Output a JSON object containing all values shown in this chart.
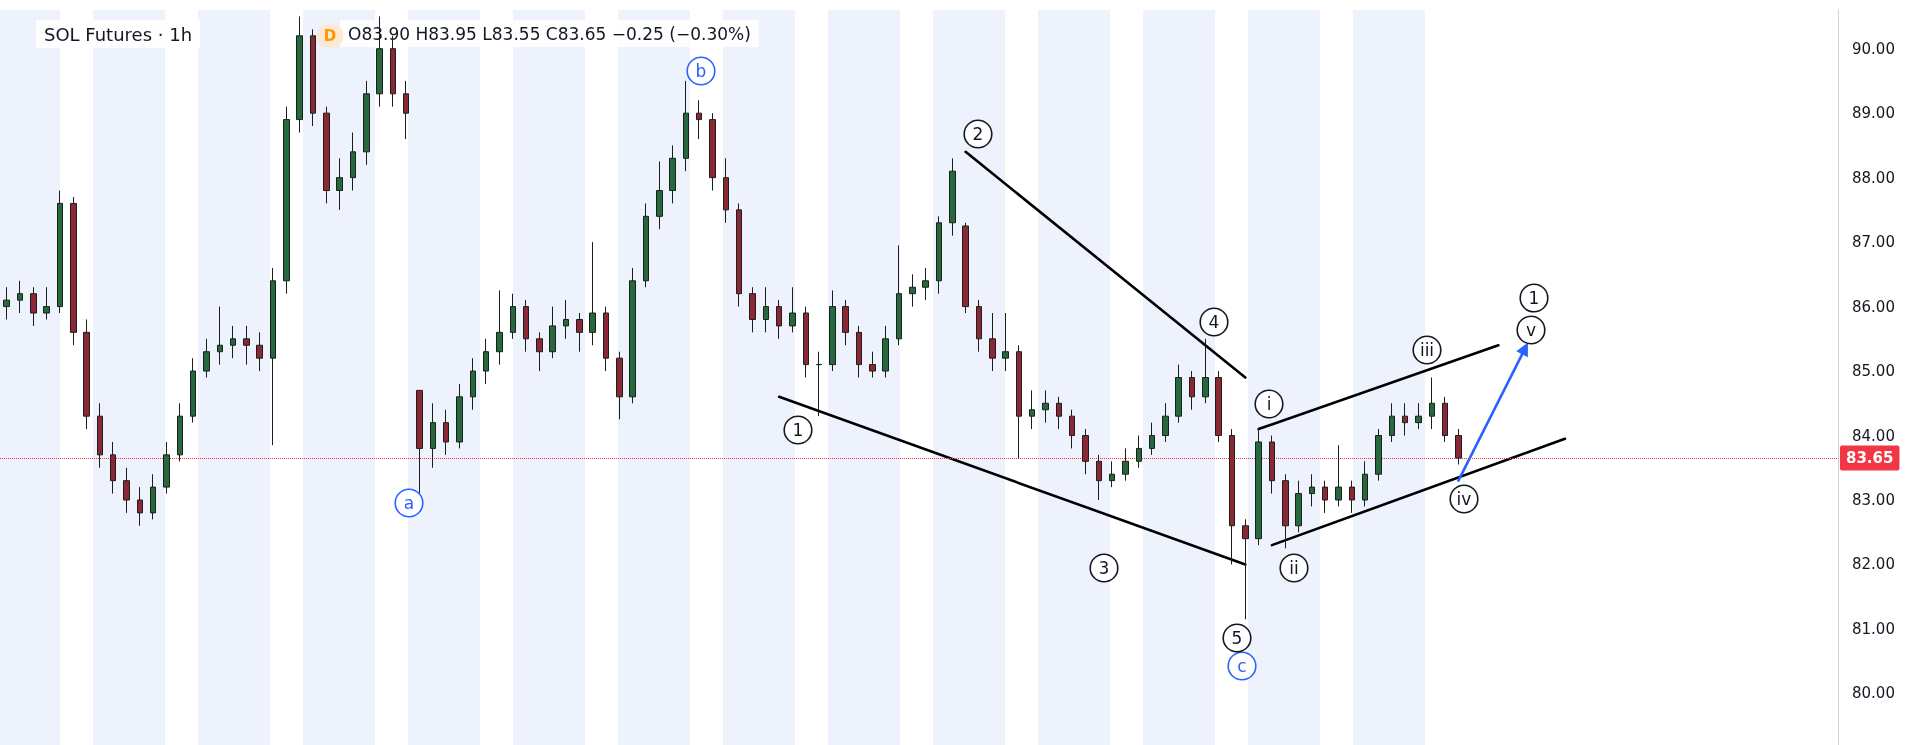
{
  "chart_data": {
    "type": "candlestick",
    "title": "SOL Futures · 1h",
    "subtitle": "O83.90 H83.95 L83.55 C83.65 −0.25 (−0.30%)",
    "annotations": [
      "D",
      "b",
      "a",
      "c",
      "1",
      "2",
      "3",
      "4",
      "5",
      "i",
      "ii",
      "iii",
      "iv",
      "v",
      "1"
    ],
    "categories": [
      null,
      null,
      null,
      null,
      null,
      null,
      null,
      null,
      null,
      null,
      null,
      null,
      null,
      null,
      null,
      null,
      null,
      null,
      null,
      null,
      null,
      null,
      null,
      null,
      null,
      null,
      null,
      null,
      null,
      null,
      null,
      null,
      null,
      null,
      null,
      null,
      null,
      null,
      null,
      null,
      null,
      null,
      null,
      null,
      null,
      null,
      null,
      null,
      null,
      null,
      null,
      null,
      null,
      null,
      null,
      null,
      null,
      null,
      null,
      null,
      null,
      null,
      null,
      null,
      null,
      null,
      null,
      null,
      null,
      null,
      null,
      null,
      null,
      null,
      null,
      null,
      null,
      null,
      null,
      null,
      null,
      null,
      null,
      null,
      null,
      null,
      null,
      null,
      null,
      null,
      null,
      null,
      null,
      null,
      null,
      null,
      null,
      null,
      null,
      null,
      null,
      null,
      null,
      null,
      null,
      null,
      null,
      null,
      null,
      null,
      null,
      null,
      null,
      null,
      null,
      null,
      null,
      null,
      null,
      null,
      null,
      null,
      null,
      null,
      null,
      null,
      null,
      null,
      null,
      null,
      null,
      null,
      null,
      null,
      null,
      null,
      null,
      null
    ],
    "ohlc": [
      [
        86.0,
        86.3,
        85.8,
        86.1
      ],
      [
        86.1,
        86.4,
        85.9,
        86.2
      ],
      [
        86.2,
        86.3,
        85.7,
        85.9
      ],
      [
        85.9,
        86.3,
        85.8,
        86.0
      ],
      [
        86.0,
        87.8,
        85.9,
        87.6
      ],
      [
        87.6,
        87.7,
        85.4,
        85.6
      ],
      [
        85.6,
        85.8,
        84.1,
        84.3
      ],
      [
        84.3,
        84.5,
        83.5,
        83.7
      ],
      [
        83.7,
        83.9,
        83.1,
        83.3
      ],
      [
        83.3,
        83.5,
        82.8,
        83.0
      ],
      [
        83.0,
        83.2,
        82.6,
        82.8
      ],
      [
        82.8,
        83.4,
        82.7,
        83.2
      ],
      [
        83.2,
        83.9,
        83.1,
        83.7
      ],
      [
        83.7,
        84.5,
        83.6,
        84.3
      ],
      [
        84.3,
        85.2,
        84.2,
        85.0
      ],
      [
        85.0,
        85.5,
        84.9,
        85.3
      ],
      [
        85.3,
        86.0,
        85.1,
        85.4
      ],
      [
        85.4,
        85.7,
        85.2,
        85.5
      ],
      [
        85.5,
        85.7,
        85.1,
        85.4
      ],
      [
        85.4,
        85.6,
        85.0,
        85.2
      ],
      [
        85.2,
        86.6,
        83.85,
        86.4
      ],
      [
        86.4,
        89.1,
        86.2,
        88.9
      ],
      [
        88.9,
        90.5,
        88.7,
        90.2
      ],
      [
        90.2,
        90.3,
        88.8,
        89.0
      ],
      [
        89.0,
        89.1,
        87.6,
        87.8
      ],
      [
        87.8,
        88.3,
        87.5,
        88.0
      ],
      [
        88.0,
        88.7,
        87.8,
        88.4
      ],
      [
        88.4,
        89.5,
        88.2,
        89.3
      ],
      [
        89.3,
        90.5,
        89.1,
        90.0
      ],
      [
        90.0,
        90.2,
        89.1,
        89.3
      ],
      [
        89.3,
        89.5,
        88.6,
        89.0
      ],
      [
        84.7,
        84.7,
        83.1,
        83.8
      ],
      [
        83.8,
        84.5,
        83.5,
        84.2
      ],
      [
        84.2,
        84.4,
        83.7,
        83.9
      ],
      [
        83.9,
        84.8,
        83.8,
        84.6
      ],
      [
        84.6,
        85.2,
        84.4,
        85.0
      ],
      [
        85.0,
        85.5,
        84.8,
        85.3
      ],
      [
        85.3,
        86.25,
        85.1,
        85.6
      ],
      [
        85.6,
        86.2,
        85.5,
        86.0
      ],
      [
        86.0,
        86.1,
        85.3,
        85.5
      ],
      [
        85.5,
        85.6,
        85.0,
        85.3
      ],
      [
        85.3,
        86.0,
        85.2,
        85.7
      ],
      [
        85.7,
        86.1,
        85.5,
        85.8
      ],
      [
        85.8,
        85.9,
        85.3,
        85.6
      ],
      [
        85.6,
        87.0,
        85.4,
        85.9
      ],
      [
        85.9,
        86.0,
        85.0,
        85.2
      ],
      [
        85.2,
        85.3,
        84.25,
        84.6
      ],
      [
        84.6,
        86.6,
        84.5,
        86.4
      ],
      [
        86.4,
        87.6,
        86.3,
        87.4
      ],
      [
        87.4,
        88.25,
        87.2,
        87.8
      ],
      [
        87.8,
        88.5,
        87.6,
        88.3
      ],
      [
        88.3,
        89.5,
        88.1,
        89.0
      ],
      [
        89.0,
        89.2,
        88.6,
        88.9
      ],
      [
        88.9,
        89.0,
        87.8,
        88.0
      ],
      [
        88.0,
        88.3,
        87.3,
        87.5
      ],
      [
        87.5,
        87.6,
        86.0,
        86.2
      ],
      [
        86.2,
        86.3,
        85.6,
        85.8
      ],
      [
        85.8,
        86.3,
        85.6,
        86.0
      ],
      [
        86.0,
        86.1,
        85.5,
        85.7
      ],
      [
        85.7,
        86.3,
        85.6,
        85.9
      ],
      [
        85.9,
        86.0,
        84.9,
        85.1
      ],
      [
        85.1,
        85.3,
        84.3,
        85.1
      ],
      [
        85.1,
        86.25,
        85.0,
        86.0
      ],
      [
        86.0,
        86.1,
        85.4,
        85.6
      ],
      [
        85.6,
        85.7,
        84.9,
        85.1
      ],
      [
        85.1,
        85.3,
        84.9,
        85.0
      ],
      [
        85.0,
        85.7,
        84.9,
        85.5
      ],
      [
        85.5,
        86.95,
        85.4,
        86.2
      ],
      [
        86.2,
        86.5,
        86.0,
        86.3
      ],
      [
        86.3,
        86.6,
        86.1,
        86.4
      ],
      [
        86.4,
        87.4,
        86.2,
        87.3
      ],
      [
        87.3,
        88.3,
        87.1,
        88.1
      ],
      [
        87.25,
        87.3,
        85.9,
        86.0
      ],
      [
        86.0,
        86.1,
        85.3,
        85.5
      ],
      [
        85.5,
        85.9,
        85.0,
        85.2
      ],
      [
        85.2,
        85.9,
        85.0,
        85.3
      ],
      [
        85.3,
        85.4,
        83.65,
        84.3
      ],
      [
        84.3,
        84.7,
        84.1,
        84.4
      ],
      [
        84.4,
        84.7,
        84.2,
        84.5
      ],
      [
        84.5,
        84.6,
        84.1,
        84.3
      ],
      [
        84.3,
        84.4,
        83.8,
        84.0
      ],
      [
        84.0,
        84.1,
        83.4,
        83.6
      ],
      [
        83.6,
        83.7,
        83.0,
        83.3
      ],
      [
        83.3,
        83.6,
        83.2,
        83.4
      ],
      [
        83.4,
        83.8,
        83.3,
        83.6
      ],
      [
        83.6,
        84.0,
        83.5,
        83.8
      ],
      [
        83.8,
        84.2,
        83.7,
        84.0
      ],
      [
        84.0,
        84.5,
        83.9,
        84.3
      ],
      [
        84.3,
        85.1,
        84.2,
        84.9
      ],
      [
        84.9,
        85.0,
        84.4,
        84.6
      ],
      [
        84.6,
        85.5,
        84.5,
        84.9
      ],
      [
        84.9,
        85.0,
        83.9,
        84.0
      ],
      [
        84.0,
        84.1,
        82.0,
        82.6
      ],
      [
        82.6,
        82.7,
        81.15,
        82.4
      ],
      [
        82.4,
        84.1,
        82.3,
        83.9
      ],
      [
        83.9,
        84.0,
        83.1,
        83.3
      ],
      [
        83.3,
        83.4,
        82.25,
        82.6
      ],
      [
        82.6,
        83.3,
        82.5,
        83.1
      ],
      [
        83.1,
        83.4,
        82.9,
        83.2
      ],
      [
        83.2,
        83.3,
        82.8,
        83.0
      ],
      [
        83.0,
        83.85,
        82.9,
        83.2
      ],
      [
        83.2,
        83.3,
        82.8,
        83.0
      ],
      [
        83.0,
        83.6,
        82.9,
        83.4
      ],
      [
        83.4,
        84.1,
        83.3,
        84.0
      ],
      [
        84.0,
        84.5,
        83.9,
        84.3
      ],
      [
        84.3,
        84.5,
        84.0,
        84.2
      ],
      [
        84.2,
        84.5,
        84.1,
        84.3
      ],
      [
        84.3,
        84.9,
        84.1,
        84.5
      ],
      [
        84.5,
        84.6,
        83.9,
        84.0
      ],
      [
        84.0,
        84.1,
        83.55,
        83.65
      ],
      null,
      null,
      null,
      null,
      null,
      null,
      null,
      null,
      null,
      null,
      null,
      null,
      null,
      null,
      null,
      null,
      null,
      null,
      null,
      null,
      null,
      null,
      null,
      null,
      null,
      null,
      null,
      null
    ],
    "series": [
      {
        "type": "line",
        "color": "#000000",
        "marker": "none",
        "values": [
          null,
          null,
          null,
          null,
          null,
          null,
          null,
          null,
          null,
          null,
          null,
          null,
          null,
          null,
          null,
          null,
          null,
          null,
          null,
          null,
          null,
          null,
          null,
          null,
          null,
          null,
          null,
          null,
          null,
          null,
          null,
          null,
          null,
          null,
          null,
          null,
          null,
          null,
          null,
          null,
          null,
          null,
          null,
          null,
          null,
          null,
          null,
          null,
          null,
          null,
          null,
          null,
          null,
          null,
          null,
          null,
          null,
          null,
          null,
          null,
          null,
          null,
          null,
          null,
          null,
          null,
          null,
          null,
          null,
          null,
          null,
          null,
          88.4,
          null,
          null,
          null,
          null,
          null,
          null,
          null,
          null,
          null,
          null,
          null,
          null,
          null,
          null,
          null,
          null,
          null,
          null,
          null,
          null,
          84.9,
          null,
          null,
          null,
          null,
          null,
          null,
          null,
          null,
          null,
          null,
          null,
          null,
          null,
          null,
          null,
          null,
          null,
          null,
          null,
          null,
          null,
          null,
          null,
          null,
          null,
          null,
          null,
          null,
          null,
          null,
          null,
          null,
          null,
          null,
          null,
          null,
          null,
          null,
          null,
          null,
          null,
          null,
          null,
          null
        ]
      },
      {
        "type": "line",
        "color": "#000000",
        "marker": "none",
        "values": [
          null,
          null,
          null,
          null,
          null,
          null,
          null,
          null,
          null,
          null,
          null,
          null,
          null,
          null,
          null,
          null,
          null,
          null,
          null,
          null,
          null,
          null,
          null,
          null,
          null,
          null,
          null,
          null,
          null,
          null,
          null,
          null,
          null,
          null,
          null,
          null,
          null,
          null,
          null,
          null,
          null,
          null,
          null,
          null,
          null,
          null,
          null,
          null,
          null,
          null,
          null,
          null,
          null,
          null,
          null,
          null,
          null,
          null,
          84.6,
          null,
          null,
          null,
          null,
          null,
          null,
          null,
          null,
          null,
          null,
          null,
          null,
          null,
          null,
          null,
          null,
          null,
          null,
          null,
          null,
          null,
          null,
          null,
          null,
          null,
          null,
          null,
          null,
          null,
          null,
          null,
          null,
          null,
          null,
          82.0,
          null,
          null,
          null,
          null,
          null,
          null,
          null,
          null,
          null,
          null,
          null,
          null,
          null,
          null,
          null,
          null,
          null,
          null,
          null,
          null,
          null,
          null,
          null,
          null,
          null,
          null,
          null,
          null,
          null,
          null,
          null,
          null,
          null,
          null,
          null,
          null,
          null,
          null,
          null,
          null,
          null,
          null,
          null,
          null
        ]
      },
      {
        "type": "line",
        "color": "#000000",
        "marker": "none",
        "values": [
          null,
          null,
          null,
          null,
          null,
          null,
          null,
          null,
          null,
          null,
          null,
          null,
          null,
          null,
          null,
          null,
          null,
          null,
          null,
          null,
          null,
          null,
          null,
          null,
          null,
          null,
          null,
          null,
          null,
          null,
          null,
          null,
          null,
          null,
          null,
          null,
          null,
          null,
          null,
          null,
          null,
          null,
          null,
          null,
          null,
          null,
          null,
          null,
          null,
          null,
          null,
          null,
          null,
          null,
          null,
          null,
          null,
          null,
          null,
          null,
          null,
          null,
          null,
          null,
          null,
          null,
          null,
          null,
          null,
          null,
          null,
          null,
          null,
          null,
          null,
          null,
          null,
          null,
          null,
          null,
          null,
          null,
          null,
          null,
          null,
          null,
          null,
          null,
          null,
          null,
          null,
          null,
          null,
          null,
          84.1,
          null,
          null,
          null,
          null,
          null,
          null,
          null,
          null,
          null,
          null,
          null,
          null,
          null,
          null,
          null,
          null,
          null,
          85.4,
          null,
          null,
          null,
          null,
          null,
          null,
          null,
          null,
          null,
          null,
          null,
          null,
          null,
          null,
          null,
          null,
          null,
          null,
          null,
          null,
          null,
          null,
          null,
          null,
          null
        ]
      },
      {
        "type": "line",
        "color": "#000000",
        "marker": "none",
        "values": [
          null,
          null,
          null,
          null,
          null,
          null,
          null,
          null,
          null,
          null,
          null,
          null,
          null,
          null,
          null,
          null,
          null,
          null,
          null,
          null,
          null,
          null,
          null,
          null,
          null,
          null,
          null,
          null,
          null,
          null,
          null,
          null,
          null,
          null,
          null,
          null,
          null,
          null,
          null,
          null,
          null,
          null,
          null,
          null,
          null,
          null,
          null,
          null,
          null,
          null,
          null,
          null,
          null,
          null,
          null,
          null,
          null,
          null,
          null,
          null,
          null,
          null,
          null,
          null,
          null,
          null,
          null,
          null,
          null,
          null,
          null,
          null,
          null,
          null,
          null,
          null,
          null,
          null,
          null,
          null,
          null,
          null,
          null,
          null,
          null,
          null,
          null,
          null,
          null,
          null,
          null,
          null,
          null,
          null,
          null,
          82.3,
          null,
          null,
          null,
          null,
          null,
          null,
          null,
          null,
          null,
          null,
          null,
          null,
          null,
          null,
          null,
          null,
          null,
          null,
          null,
          null,
          null,
          83.95,
          null,
          null,
          null,
          null,
          null,
          null,
          null,
          null,
          null,
          null,
          null,
          null,
          null,
          null,
          null,
          null,
          null,
          null,
          null,
          null
        ]
      },
      {
        "type": "line",
        "color": "#2962ff",
        "marker": "triangle",
        "values": [
          null,
          null,
          null,
          null,
          null,
          null,
          null,
          null,
          null,
          null,
          null,
          null,
          null,
          null,
          null,
          null,
          null,
          null,
          null,
          null,
          null,
          null,
          null,
          null,
          null,
          null,
          null,
          null,
          null,
          null,
          null,
          null,
          null,
          null,
          null,
          null,
          null,
          null,
          null,
          null,
          null,
          null,
          null,
          null,
          null,
          null,
          null,
          null,
          null,
          null,
          null,
          null,
          null,
          null,
          null,
          null,
          null,
          null,
          null,
          null,
          null,
          null,
          null,
          null,
          null,
          null,
          null,
          null,
          null,
          null,
          null,
          null,
          null,
          null,
          null,
          null,
          null,
          null,
          null,
          null,
          null,
          null,
          null,
          null,
          null,
          null,
          null,
          null,
          null,
          null,
          null,
          null,
          null,
          null,
          null,
          null,
          null,
          null,
          null,
          null,
          null,
          null,
          null,
          null,
          null,
          null,
          null,
          null,
          null,
          83.3,
          null,
          null,
          null,
          null,
          85.35,
          null,
          null,
          null,
          null,
          null,
          null,
          null,
          null,
          null,
          null,
          null,
          null,
          null,
          null,
          null,
          null,
          null,
          null,
          null,
          null,
          null,
          null,
          null
        ]
      }
    ],
    "line_style": "solid",
    "ylim": [
      79.2,
      90.6
    ],
    "yticks": [
      {
        "value": 80,
        "label": "80.00"
      },
      {
        "value": 81,
        "label": "81.00"
      },
      {
        "value": 82,
        "label": "82.00"
      },
      {
        "value": 83,
        "label": "83.00"
      },
      {
        "value": 84,
        "label": "84.00"
      },
      {
        "value": 85,
        "label": "85.00"
      },
      {
        "value": 86,
        "label": "86.00"
      },
      {
        "value": 87,
        "label": "87.00"
      },
      {
        "value": 88,
        "label": "88.00"
      },
      {
        "value": 89,
        "label": "89.00"
      },
      {
        "value": 90,
        "label": "90.00"
      }
    ],
    "ref_lines": [
      {
        "axis": "y",
        "value": 83.65,
        "label": "83.65",
        "color": "#f23645",
        "line_style": "dotted"
      }
    ],
    "tick_labels": "y",
    "grid": false
  }
}
